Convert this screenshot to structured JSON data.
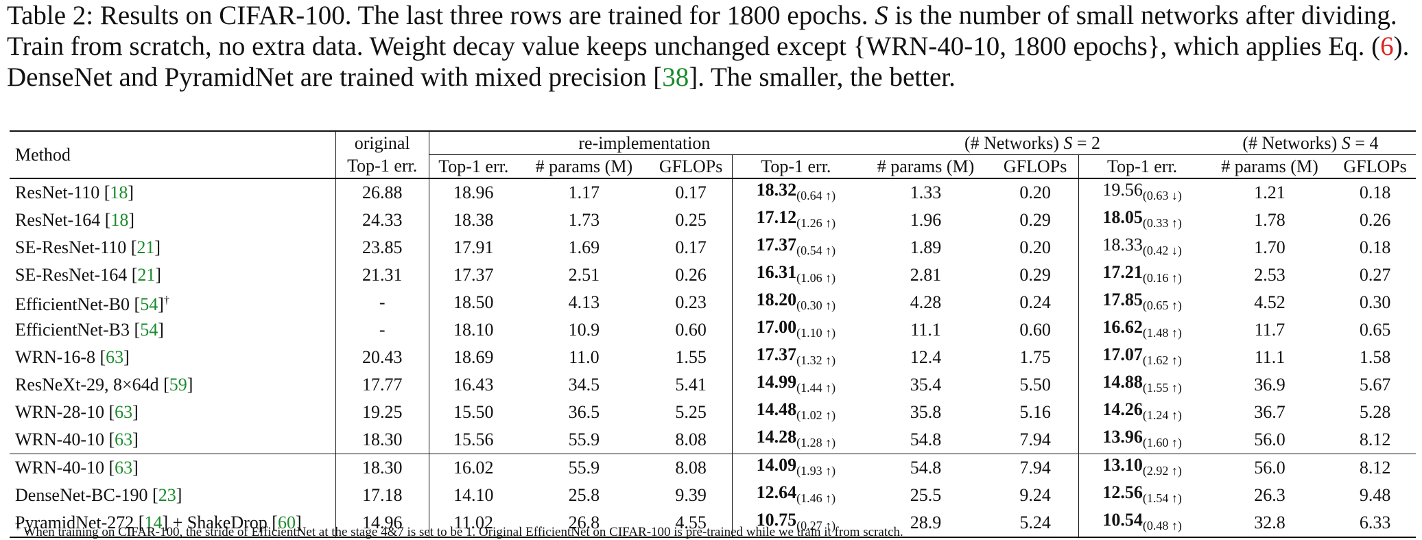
{
  "caption": {
    "label": "Table 2:",
    "part1": " Results on CIFAR-100. The last three rows are trained for 1800 epochs. ",
    "var": "S",
    "part2": " is the number of small networks after dividing. Train from scratch, no extra data. Weight decay value keeps unchanged except {WRN-40-10, 1800 epochs}, which applies Eq. (",
    "eqref": "6",
    "part3": "). DenseNet and PyramidNet are trained with mixed precision [",
    "ref": "38",
    "part4": "]. The smaller, the better."
  },
  "header": {
    "method": "Method",
    "group_original": "original",
    "group_reimpl": "re-implementation",
    "group_s2_prefix": "(# Networks) ",
    "group_s2_var": "S",
    "group_s2_suffix": " = 2",
    "group_s4_prefix": "(# Networks) ",
    "group_s4_var": "S",
    "group_s4_suffix": " = 4",
    "top1": "Top-1 err.",
    "params": "# params (M)",
    "gflops": "GFLOPs"
  },
  "rows": [
    {
      "name": "ResNet-110 [",
      "ref": "18",
      "name_end": "]",
      "orig": "26.88",
      "re_top1": "18.96",
      "re_params": "1.17",
      "re_gflops": "0.17",
      "s2_top1": "18.32",
      "s2_delta": "(0.64 ↑)",
      "s2_bold": true,
      "s2_params": "1.33",
      "s2_gflops": "0.20",
      "s4_top1": "19.56",
      "s4_delta": "(0.63 ↓)",
      "s4_bold": false,
      "s4_params": "1.21",
      "s4_gflops": "0.18"
    },
    {
      "name": "ResNet-164 [",
      "ref": "18",
      "name_end": "]",
      "orig": "24.33",
      "re_top1": "18.38",
      "re_params": "1.73",
      "re_gflops": "0.25",
      "s2_top1": "17.12",
      "s2_delta": "(1.26 ↑)",
      "s2_bold": true,
      "s2_params": "1.96",
      "s2_gflops": "0.29",
      "s4_top1": "18.05",
      "s4_delta": "(0.33 ↑)",
      "s4_bold": true,
      "s4_params": "1.78",
      "s4_gflops": "0.26"
    },
    {
      "name": "SE-ResNet-110 [",
      "ref": "21",
      "name_end": "]",
      "orig": "23.85",
      "re_top1": "17.91",
      "re_params": "1.69",
      "re_gflops": "0.17",
      "s2_top1": "17.37",
      "s2_delta": "(0.54 ↑)",
      "s2_bold": true,
      "s2_params": "1.89",
      "s2_gflops": "0.20",
      "s4_top1": "18.33",
      "s4_delta": "(0.42 ↓)",
      "s4_bold": false,
      "s4_params": "1.70",
      "s4_gflops": "0.18"
    },
    {
      "name": "SE-ResNet-164 [",
      "ref": "21",
      "name_end": "]",
      "orig": "21.31",
      "re_top1": "17.37",
      "re_params": "2.51",
      "re_gflops": "0.26",
      "s2_top1": "16.31",
      "s2_delta": "(1.06 ↑)",
      "s2_bold": true,
      "s2_params": "2.81",
      "s2_gflops": "0.29",
      "s4_top1": "17.21",
      "s4_delta": "(0.16 ↑)",
      "s4_bold": true,
      "s4_params": "2.53",
      "s4_gflops": "0.27"
    },
    {
      "name": "EfficientNet-B0 [",
      "ref": "54",
      "name_end": "]",
      "dagger": "†",
      "orig": "-",
      "re_top1": "18.50",
      "re_params": "4.13",
      "re_gflops": "0.23",
      "s2_top1": "18.20",
      "s2_delta": "(0.30 ↑)",
      "s2_bold": true,
      "s2_params": "4.28",
      "s2_gflops": "0.24",
      "s4_top1": "17.85",
      "s4_delta": "(0.65 ↑)",
      "s4_bold": true,
      "s4_params": "4.52",
      "s4_gflops": "0.30"
    },
    {
      "name": "EfficientNet-B3 [",
      "ref": "54",
      "name_end": "]",
      "orig": "-",
      "re_top1": "18.10",
      "re_params": "10.9",
      "re_gflops": "0.60",
      "s2_top1": "17.00",
      "s2_delta": "(1.10 ↑)",
      "s2_bold": true,
      "s2_params": "11.1",
      "s2_gflops": "0.60",
      "s4_top1": "16.62",
      "s4_delta": "(1.48 ↑)",
      "s4_bold": true,
      "s4_params": "11.7",
      "s4_gflops": "0.65"
    },
    {
      "name": "WRN-16-8 [",
      "ref": "63",
      "name_end": "]",
      "orig": "20.43",
      "re_top1": "18.69",
      "re_params": "11.0",
      "re_gflops": "1.55",
      "s2_top1": "17.37",
      "s2_delta": "(1.32 ↑)",
      "s2_bold": true,
      "s2_params": "12.4",
      "s2_gflops": "1.75",
      "s4_top1": "17.07",
      "s4_delta": "(1.62 ↑)",
      "s4_bold": true,
      "s4_params": "11.1",
      "s4_gflops": "1.58"
    },
    {
      "name": "ResNeXt-29, 8×64d [",
      "ref": "59",
      "name_end": "]",
      "orig": "17.77",
      "re_top1": "16.43",
      "re_params": "34.5",
      "re_gflops": "5.41",
      "s2_top1": "14.99",
      "s2_delta": "(1.44 ↑)",
      "s2_bold": true,
      "s2_params": "35.4",
      "s2_gflops": "5.50",
      "s4_top1": "14.88",
      "s4_delta": "(1.55 ↑)",
      "s4_bold": true,
      "s4_params": "36.9",
      "s4_gflops": "5.67"
    },
    {
      "name": "WRN-28-10 [",
      "ref": "63",
      "name_end": "]",
      "orig": "19.25",
      "re_top1": "15.50",
      "re_params": "36.5",
      "re_gflops": "5.25",
      "s2_top1": "14.48",
      "s2_delta": "(1.02 ↑)",
      "s2_bold": true,
      "s2_params": "35.8",
      "s2_gflops": "5.16",
      "s4_top1": "14.26",
      "s4_delta": "(1.24 ↑)",
      "s4_bold": true,
      "s4_params": "36.7",
      "s4_gflops": "5.28"
    },
    {
      "name": "WRN-40-10 [",
      "ref": "63",
      "name_end": "]",
      "orig": "18.30",
      "re_top1": "15.56",
      "re_params": "55.9",
      "re_gflops": "8.08",
      "s2_top1": "14.28",
      "s2_delta": "(1.28 ↑)",
      "s2_bold": true,
      "s2_params": "54.8",
      "s2_gflops": "7.94",
      "s4_top1": "13.96",
      "s4_delta": "(1.60 ↑)",
      "s4_bold": true,
      "s4_params": "56.0",
      "s4_gflops": "8.12"
    },
    {
      "sep": true,
      "name": "WRN-40-10 [",
      "ref": "63",
      "name_end": "]",
      "orig": "18.30",
      "re_top1": "16.02",
      "re_params": "55.9",
      "re_gflops": "8.08",
      "s2_top1": "14.09",
      "s2_delta": "(1.93 ↑)",
      "s2_bold": true,
      "s2_params": "54.8",
      "s2_gflops": "7.94",
      "s4_top1": "13.10",
      "s4_delta": "(2.92 ↑)",
      "s4_bold": true,
      "s4_params": "56.0",
      "s4_gflops": "8.12"
    },
    {
      "name": "DenseNet-BC-190 [",
      "ref": "23",
      "name_end": "]",
      "orig": "17.18",
      "re_top1": "14.10",
      "re_params": "25.8",
      "re_gflops": "9.39",
      "s2_top1": "12.64",
      "s2_delta": "(1.46 ↑)",
      "s2_bold": true,
      "s2_params": "25.5",
      "s2_gflops": "9.24",
      "s4_top1": "12.56",
      "s4_delta": "(1.54 ↑)",
      "s4_bold": true,
      "s4_params": "26.3",
      "s4_gflops": "9.48"
    },
    {
      "name": "PyramidNet-272 [",
      "ref": "14",
      "name_end": "] + ShakeDrop [",
      "ref2": "60",
      "name_end2": "]",
      "orig": "14.96",
      "re_top1": "11.02",
      "re_params": "26.8",
      "re_gflops": "4.55",
      "s2_top1": "10.75",
      "s2_delta": "(0.27 ↑)",
      "s2_bold": true,
      "s2_params": "28.9",
      "s2_gflops": "5.24",
      "s4_top1": "10.54",
      "s4_delta": "(0.48 ↑)",
      "s4_bold": true,
      "s4_params": "32.8",
      "s4_gflops": "6.33"
    }
  ],
  "footnote": {
    "mark": "†",
    "text": " When training on CIFAR-100, the stride of EfficientNet at the stage 4&7 is set to be 1. Original EfficientNet on CIFAR-100 is pre-trained while we train it from scratch."
  },
  "colors": {
    "citation": "#1a8a2a",
    "equation_ref": "#e02020",
    "text": "#111111"
  }
}
